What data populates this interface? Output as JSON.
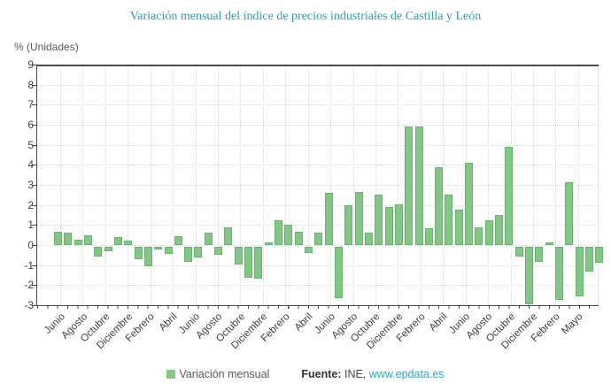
{
  "title": "Variación mensual del índice de precios industriales de Castilla y León",
  "y_axis_title": "% (Unidades)",
  "legend": {
    "series_label": "Variación mensual"
  },
  "footer": {
    "source_label": "Fuente:",
    "source_value": "INE,",
    "source_link": "www.epdata.es"
  },
  "colors": {
    "bar_fill": "#82c785",
    "bar_border": "#68b46e",
    "title": "#2e9db4",
    "link": "#2da7c7",
    "text": "#3f3f3f",
    "grid": "#d9d9d9",
    "axis": "#4a4a4a"
  },
  "chart_data": {
    "type": "bar",
    "title": "Variación mensual del índice de precios industriales de Castilla y León",
    "xlabel": "",
    "ylabel": "% (Unidades)",
    "ylim": [
      -3,
      9
    ],
    "y_ticks": [
      9,
      8,
      7,
      6,
      5,
      4,
      3,
      2,
      1,
      0,
      -1,
      -2,
      -3
    ],
    "grid": true,
    "legend_position": "bottom",
    "x_tick_labels": [
      "Junio",
      "Agosto",
      "Octubre",
      "Diciembre",
      "Febrero",
      "Abril",
      "Junio",
      "Agosto",
      "Octubre",
      "Diciembre",
      "Febrero",
      "Abril",
      "Junio",
      "Agosto",
      "Octubre",
      "Diciembre",
      "Febrero",
      "Abril",
      "Junio",
      "Agosto",
      "Octubre",
      "Diciembre",
      "Febrero",
      "Mayo"
    ],
    "series_name": "Variación mensual",
    "values": [
      0.65,
      0.6,
      0.25,
      0.5,
      -0.5,
      -0.2,
      0.4,
      0.2,
      -0.6,
      -0.95,
      -0.15,
      -0.35,
      0.45,
      -0.75,
      -0.55,
      0.6,
      -0.4,
      0.9,
      -0.9,
      -1.55,
      -1.6,
      0.15,
      1.25,
      1.0,
      0.65,
      -0.3,
      0.6,
      2.6,
      -2.55,
      2.0,
      2.65,
      0.6,
      2.5,
      1.9,
      2.05,
      5.9,
      5.9,
      0.85,
      3.9,
      2.5,
      1.75,
      4.1,
      0.9,
      1.25,
      1.5,
      4.9,
      -0.5,
      -2.85,
      -0.75,
      0.15,
      -2.65,
      3.15,
      -2.45,
      -1.25,
      -0.8
    ]
  }
}
